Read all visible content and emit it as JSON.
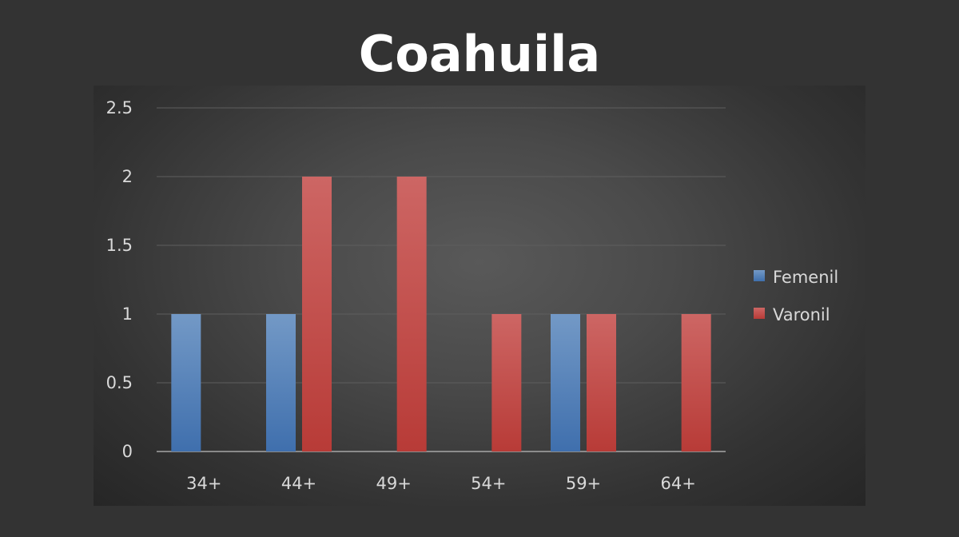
{
  "chart_data": {
    "type": "bar",
    "title": "Coahuila",
    "xlabel": "",
    "ylabel": "",
    "categories": [
      "34+",
      "44+",
      "49+",
      "54+",
      "59+",
      "64+"
    ],
    "series": [
      {
        "name": "Femenil",
        "color": "#4f81bd",
        "values": [
          1,
          1,
          0,
          0,
          1,
          0
        ]
      },
      {
        "name": "Varonil",
        "color": "#c0504d",
        "values": [
          0,
          2,
          2,
          1,
          1,
          1
        ]
      }
    ],
    "ylim": [
      0,
      2.5
    ],
    "yticks": [
      "0",
      "0.5",
      "1",
      "1.5",
      "2",
      "2.5"
    ],
    "ytick_values": [
      0,
      0.5,
      1,
      1.5,
      2,
      2.5
    ],
    "grid": true,
    "legend_position": "right"
  }
}
